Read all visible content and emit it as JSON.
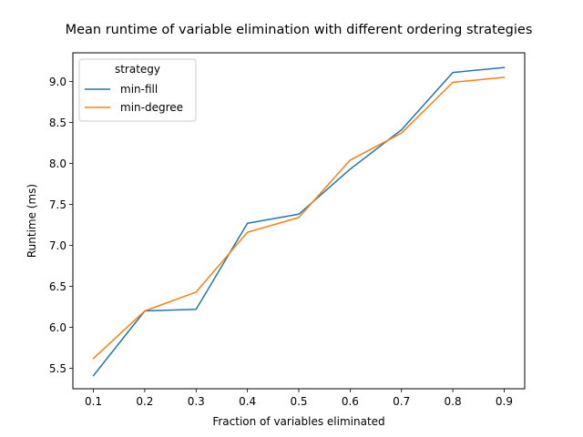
{
  "chart_data": {
    "type": "line",
    "title": "Mean runtime of variable elimination with different ordering strategies",
    "xlabel": "Fraction of variables eliminated",
    "ylabel": "Runtime (ms)",
    "x": [
      0.1,
      0.2,
      0.3,
      0.4,
      0.5,
      0.6,
      0.7,
      0.8,
      0.9
    ],
    "xticks": [
      "0.1",
      "0.2",
      "0.3",
      "0.4",
      "0.5",
      "0.6",
      "0.7",
      "0.8",
      "0.9"
    ],
    "yticks": [
      "5.5",
      "6.0",
      "6.5",
      "7.0",
      "7.5",
      "8.0",
      "8.5",
      "9.0"
    ],
    "xlim": [
      0.06,
      0.94
    ],
    "ylim": [
      5.25,
      9.35
    ],
    "grid": false,
    "legend": {
      "title": "strategy",
      "placement": "top-left"
    },
    "series": [
      {
        "name": "min-fill",
        "color": "#1f77b4",
        "values": [
          5.41,
          6.2,
          6.22,
          7.27,
          7.38,
          7.93,
          8.41,
          9.11,
          9.17
        ]
      },
      {
        "name": "min-degree",
        "color": "#ff7f0e",
        "values": [
          5.62,
          6.2,
          6.43,
          7.16,
          7.34,
          8.04,
          8.37,
          8.99,
          9.05
        ]
      }
    ]
  }
}
